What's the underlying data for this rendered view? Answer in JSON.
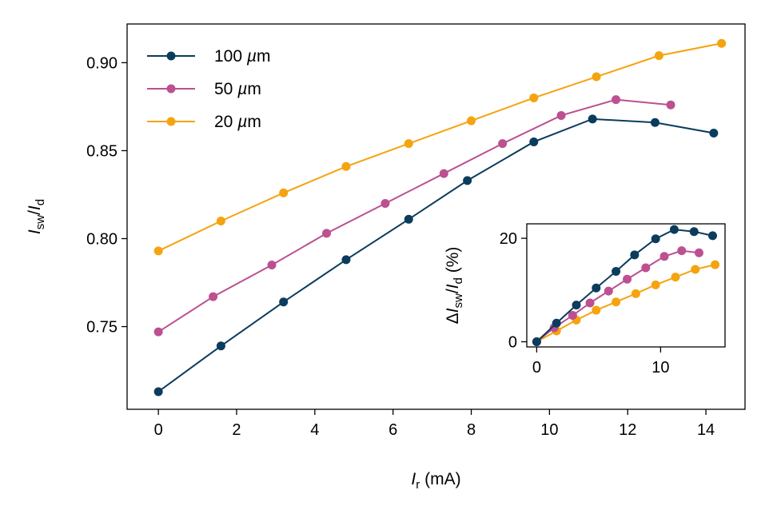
{
  "chart_data": [
    {
      "type": "line",
      "name": "main",
      "xlabel": {
        "var": "I",
        "sub": "r",
        "unit": " (mA)"
      },
      "ylabel": {
        "var1": "I",
        "sub1": "sw",
        "slash": "/",
        "var2": "I",
        "sub2": "d"
      },
      "xlim": [
        -0.8,
        15.0
      ],
      "ylim": [
        0.703,
        0.922
      ],
      "xticks": [
        0,
        2,
        4,
        6,
        8,
        10,
        12,
        14
      ],
      "xtick_labels": [
        "0",
        "2",
        "4",
        "6",
        "8",
        "10",
        "12",
        "14"
      ],
      "yticks": [
        0.75,
        0.8,
        0.85,
        0.9
      ],
      "ytick_labels": [
        "0.75",
        "0.80",
        "0.85",
        "0.90"
      ],
      "legend_position": "top-left",
      "series": [
        {
          "name": "100 µm",
          "label_num": "100",
          "label_unit": "µm",
          "color": "#0b3c5d",
          "x": [
            0,
            1.6,
            3.2,
            4.8,
            6.4,
            7.9,
            9.6,
            11.1,
            12.7,
            14.2
          ],
          "y": [
            0.713,
            0.739,
            0.764,
            0.788,
            0.811,
            0.833,
            0.855,
            0.868,
            0.866,
            0.86
          ]
        },
        {
          "name": "50 µm",
          "label_num": "50",
          "label_unit": "µm",
          "color": "#bc5090",
          "x": [
            0,
            1.4,
            2.9,
            4.3,
            5.8,
            7.3,
            8.8,
            10.3,
            11.7,
            13.1
          ],
          "y": [
            0.747,
            0.767,
            0.785,
            0.803,
            0.82,
            0.837,
            0.854,
            0.87,
            0.879,
            0.876
          ]
        },
        {
          "name": "20 µm",
          "label_num": "20",
          "label_unit": "µm",
          "color": "#f5a30f",
          "x": [
            0,
            1.6,
            3.2,
            4.8,
            6.4,
            8.0,
            9.6,
            11.2,
            12.8,
            14.4
          ],
          "y": [
            0.793,
            0.81,
            0.826,
            0.841,
            0.854,
            0.867,
            0.88,
            0.892,
            0.904,
            0.911
          ]
        }
      ]
    },
    {
      "type": "line",
      "name": "inset",
      "ylabel": {
        "prefix": "Δ",
        "var1": "I",
        "sub1": "sw",
        "slash": "/",
        "var2": "I",
        "sub2": "d",
        "unit": " (%)"
      },
      "xlim": [
        -0.8,
        15.2
      ],
      "ylim": [
        -1.0,
        22.8
      ],
      "xticks": [
        0,
        10
      ],
      "xtick_labels": [
        "0",
        "10"
      ],
      "yticks": [
        0,
        20
      ],
      "ytick_labels": [
        "0",
        "20"
      ],
      "series": [
        {
          "name": "100 µm",
          "color": "#0b3c5d",
          "x": [
            0,
            1.6,
            3.2,
            4.8,
            6.4,
            7.9,
            9.6,
            11.1,
            12.7,
            14.2
          ],
          "y": [
            0,
            3.6,
            7.1,
            10.4,
            13.6,
            16.8,
            19.9,
            21.7,
            21.3,
            20.5
          ]
        },
        {
          "name": "50 µm",
          "color": "#bc5090",
          "x": [
            0,
            1.4,
            2.9,
            4.3,
            5.8,
            7.3,
            8.8,
            10.3,
            11.7,
            13.1
          ],
          "y": [
            0,
            2.7,
            5.1,
            7.5,
            9.8,
            12.1,
            14.3,
            16.5,
            17.6,
            17.2
          ]
        },
        {
          "name": "20 µm",
          "color": "#f5a30f",
          "x": [
            0,
            1.6,
            3.2,
            4.8,
            6.4,
            8.0,
            9.6,
            11.2,
            12.8,
            14.4
          ],
          "y": [
            0,
            2.1,
            4.2,
            6.1,
            7.7,
            9.3,
            11.0,
            12.5,
            14.0,
            14.9
          ]
        }
      ]
    }
  ]
}
